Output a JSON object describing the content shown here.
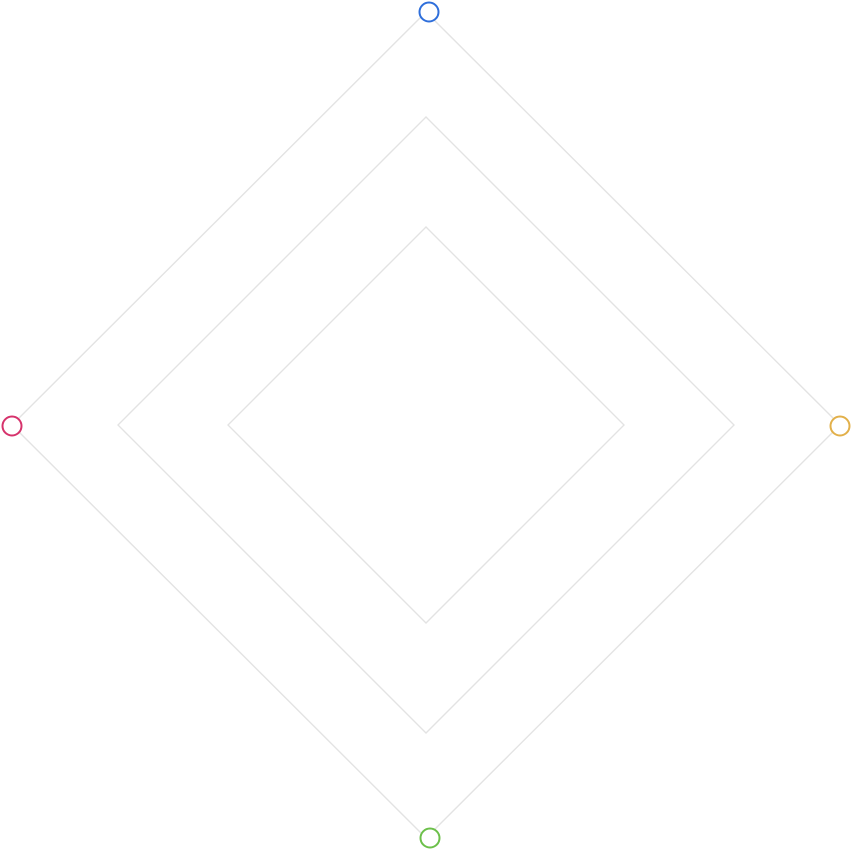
{
  "diagram": {
    "rings": [
      {
        "name": "outer-ring"
      },
      {
        "name": "middle-ring"
      },
      {
        "name": "inner-ring"
      }
    ],
    "ring_color": "#e3e3e3",
    "nodes": [
      {
        "name": "top-node",
        "position": "top",
        "color": "#2f6fdb"
      },
      {
        "name": "right-node",
        "position": "right",
        "color": "#e2b04a"
      },
      {
        "name": "bottom-node",
        "position": "bottom",
        "color": "#6cc04a"
      },
      {
        "name": "left-node",
        "position": "left",
        "color": "#d6336c"
      }
    ]
  }
}
